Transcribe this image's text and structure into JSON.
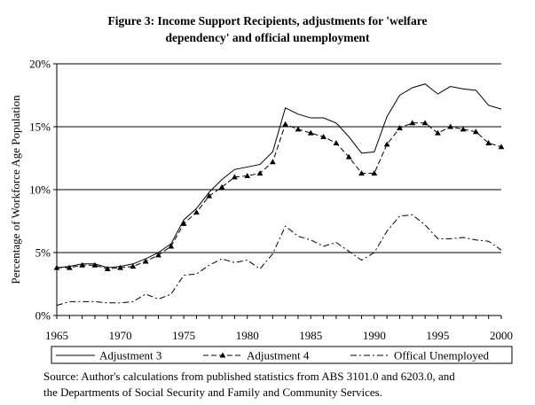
{
  "chart_data": {
    "type": "line",
    "title_lines": [
      "Figure 3: Income Support Recipients, adjustments for 'welfare",
      "dependency' and official unemployment"
    ],
    "xlabel": "",
    "ylabel": "Percentage of Workforce Age Population",
    "xlim": [
      1965,
      2000
    ],
    "ylim": [
      0,
      20
    ],
    "x_ticks": [
      1965,
      1970,
      1975,
      1980,
      1985,
      1990,
      1995,
      2000
    ],
    "y_ticks": [
      0,
      5,
      10,
      15,
      20
    ],
    "y_tick_labels": [
      "0%",
      "5%",
      "10%",
      "15%",
      "20%"
    ],
    "grid": "horizontal",
    "legend_position": "bottom",
    "x": [
      1965,
      1966,
      1967,
      1968,
      1969,
      1970,
      1971,
      1972,
      1973,
      1974,
      1975,
      1976,
      1977,
      1978,
      1979,
      1980,
      1981,
      1982,
      1983,
      1984,
      1985,
      1986,
      1987,
      1988,
      1989,
      1990,
      1991,
      1992,
      1993,
      1994,
      1995,
      1996,
      1997,
      1998,
      1999,
      2000
    ],
    "series": [
      {
        "name": "Adjustment 3",
        "style": "solid",
        "marker": "none",
        "values": [
          3.8,
          3.9,
          4.1,
          4.1,
          3.8,
          3.9,
          4.1,
          4.5,
          5.0,
          5.7,
          7.6,
          8.5,
          9.8,
          10.8,
          11.6,
          11.8,
          12.0,
          13.0,
          16.5,
          16.0,
          15.7,
          15.7,
          15.3,
          14.2,
          12.9,
          13.0,
          15.8,
          17.5,
          18.1,
          18.4,
          17.6,
          18.2,
          18.0,
          17.9,
          16.7,
          16.4
        ]
      },
      {
        "name": "Adjustment 4",
        "style": "dashed",
        "marker": "triangle",
        "values": [
          3.8,
          3.8,
          4.0,
          4.0,
          3.7,
          3.8,
          3.9,
          4.3,
          4.8,
          5.5,
          7.3,
          8.2,
          9.5,
          10.2,
          11.0,
          11.1,
          11.3,
          12.2,
          15.2,
          14.8,
          14.5,
          14.2,
          13.7,
          12.6,
          11.3,
          11.3,
          13.6,
          14.9,
          15.3,
          15.3,
          14.5,
          15.0,
          14.8,
          14.6,
          13.7,
          13.4
        ]
      },
      {
        "name": "Offical Unemployed",
        "style": "dashdot",
        "marker": "none",
        "values": [
          0.8,
          1.1,
          1.1,
          1.1,
          1.0,
          1.0,
          1.1,
          1.7,
          1.3,
          1.7,
          3.2,
          3.3,
          4.0,
          4.5,
          4.2,
          4.4,
          3.7,
          4.9,
          7.1,
          6.3,
          6.0,
          5.5,
          5.8,
          5.1,
          4.4,
          5.0,
          6.7,
          7.9,
          8.0,
          7.2,
          6.1,
          6.1,
          6.2,
          6.0,
          5.9,
          5.2
        ]
      }
    ],
    "source_lines": [
      "Source: Author's calculations from published statistics from ABS 3101.0 and 6203.0, and",
      "the Departments of Social Security and Family and Community Services."
    ]
  }
}
